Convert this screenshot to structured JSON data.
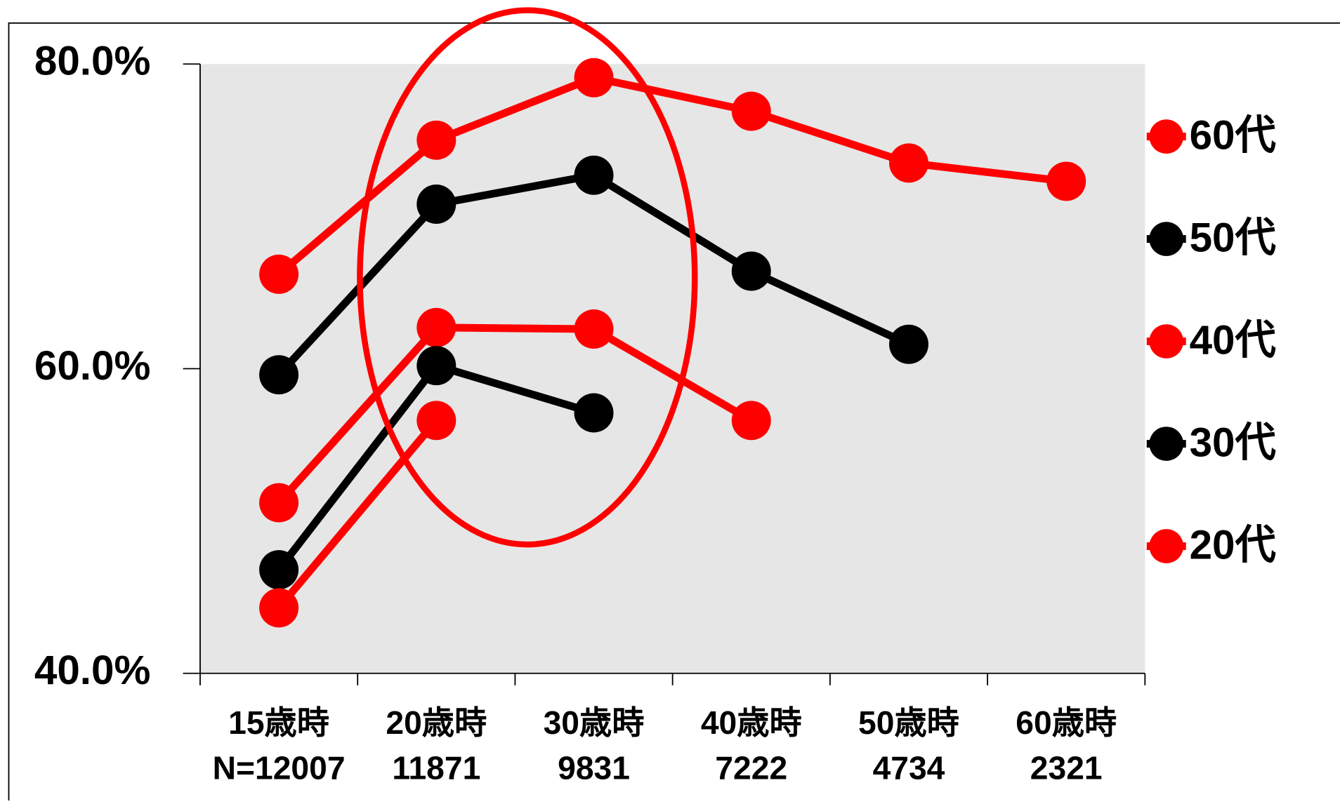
{
  "chart_data": {
    "type": "line",
    "categories": [
      "15歳時",
      "20歳時",
      "30歳時",
      "40歳時",
      "50歳時",
      "60歳時"
    ],
    "sample_sizes": [
      "N=12007",
      "11871",
      "9831",
      "7222",
      "4734",
      "2321"
    ],
    "series": [
      {
        "name": "60代",
        "color": "#ff0000",
        "values": [
          66.2,
          75.0,
          79.1,
          76.9,
          73.5,
          72.3
        ]
      },
      {
        "name": "50代",
        "color": "#000000",
        "values": [
          59.6,
          70.8,
          72.7,
          66.4,
          61.6,
          null
        ]
      },
      {
        "name": "40代",
        "color": "#ff0000",
        "values": [
          51.2,
          62.7,
          62.6,
          56.6,
          null,
          null
        ]
      },
      {
        "name": "30代",
        "color": "#000000",
        "values": [
          46.8,
          60.2,
          57.1,
          null,
          null,
          null
        ]
      },
      {
        "name": "20代",
        "color": "#ff0000",
        "values": [
          44.3,
          56.6,
          null,
          null,
          null,
          null
        ]
      }
    ],
    "ylim": [
      40,
      80
    ],
    "yticks": [
      {
        "value": 40,
        "label": "40.0%"
      },
      {
        "value": 60,
        "label": "60.0%"
      },
      {
        "value": 80,
        "label": "80.0%"
      }
    ],
    "grid": false,
    "legend": "right"
  }
}
